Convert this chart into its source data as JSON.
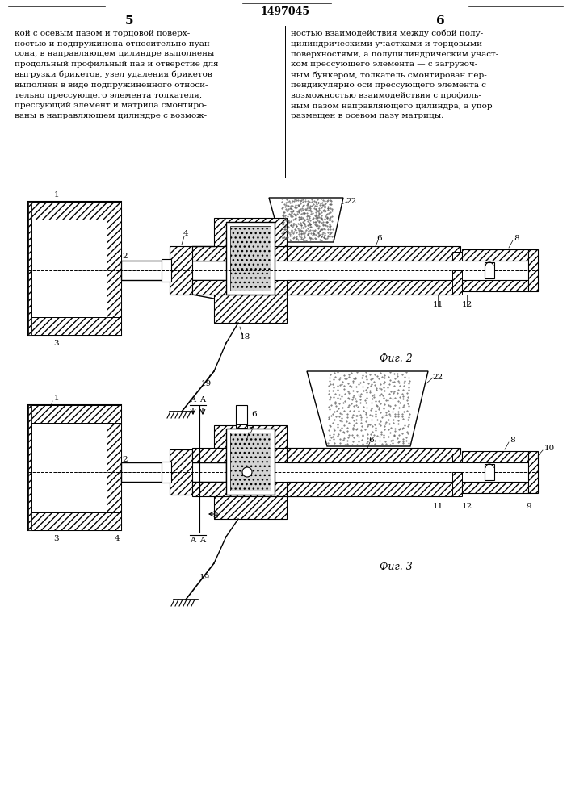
{
  "patent_number": "1497045",
  "page_left": "5",
  "page_right": "6",
  "text_left": "кой с осевым пазом и торцовой поверх-\nностью и подпружинена относительно пуан-\nсона, в направляющем цилиндре выполнены\nпродольный профильный паз и отверстие для\nвыгрузки брикетов, узел удаления брикетов\nвыполнен в виде подпружиненного относи-\nтельно прессующего элемента толкателя,\nпрессующий элемент и матрица смонтиро-\nваны в направляющем цилиндре с возмож-",
  "text_right": "ностью взаимодействия между собой полу-\nцилиндрическими участками и торцовыми\nповерхностями, а полуцилиндрическим участ-\nком прессующего элемента — с загрузоч-\nным бункером, толкатель смонтирован пер-\nпендикулярно оси прессующего элемента с\nвозможностью взаимодействия с профиль-\nным пазом направляющего цилиндра, а упор\nразмещен в осевом пазу матрицы.",
  "fig2_label": "Фиг. 2",
  "fig3_label": "Фиг. 3",
  "bg_color": "#ffffff"
}
